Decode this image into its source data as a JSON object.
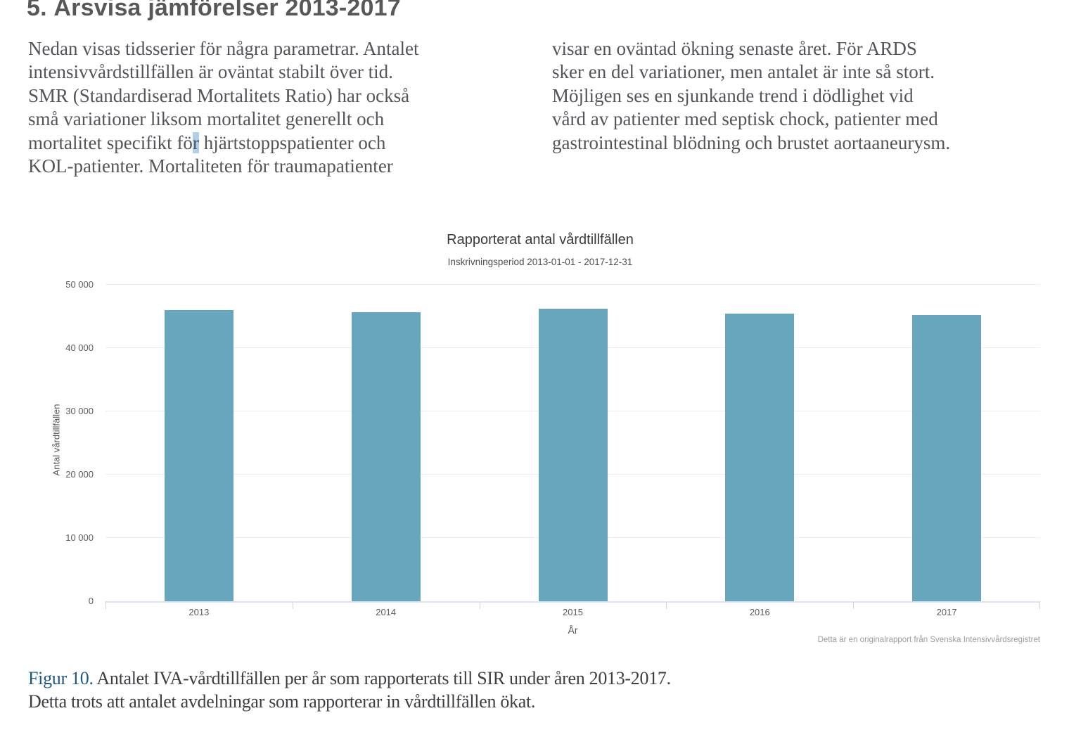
{
  "page": {
    "heading": "5. Årsvisa jämförelser 2013-2017"
  },
  "body": {
    "left_col": {
      "line1": "Nedan visas tidsserier för några parametrar. Antalet",
      "line2": "intensivvårdstillfällen är oväntat stabilt över tid.",
      "line3": "SMR (Standardiserad Mortalitets Ratio) har också",
      "line4": "små variationer liksom mortalitet generellt och",
      "line5_before": "mortalitet specifikt fö",
      "line5_highlight": "r",
      "line5_after": " hjärtstoppspatienter och",
      "line6": "KOL-patienter. Mortaliteten för traumapatienter"
    },
    "right_col": {
      "line1": "visar en oväntad ökning senaste året. För ARDS",
      "line2": "sker en del variationer, men antalet är inte så stort.",
      "line3": "Möjligen ses en sjunkande trend i dödlighet vid",
      "line4": "vård av patienter med septisk chock, patienter med",
      "line5": "gastrointestinal blödning och brustet aortaaneurysm."
    }
  },
  "chart": {
    "title": "Rapporterat antal vårdtillfällen",
    "subtitle": "Inskrivningsperiod 2013-01-01 - 2017-12-31",
    "y_axis_label": "Antal vårdtillfällen",
    "x_axis_label": "År",
    "source_note": "Detta är en originalrapport från Svenska Intensivvårdsregistret",
    "bar_color": "#67a6bc",
    "y_axis_ticks": [
      {
        "value": 0,
        "label": "0"
      },
      {
        "value": 10000,
        "label": "10 000"
      },
      {
        "value": 20000,
        "label": "20 000"
      },
      {
        "value": 30000,
        "label": "30 000"
      },
      {
        "value": 40000,
        "label": "40 000"
      },
      {
        "value": 50000,
        "label": "50 000"
      }
    ]
  },
  "chart_data": {
    "type": "bar",
    "categories": [
      "2013",
      "2014",
      "2015",
      "2016",
      "2017"
    ],
    "values": [
      46000,
      45650,
      46200,
      45450,
      45200
    ],
    "title": "Rapporterat antal vårdtillfällen",
    "subtitle": "Inskrivningsperiod 2013-01-01 - 2017-12-31",
    "xlabel": "År",
    "ylabel": "Antal vårdtillfällen",
    "ylim": [
      0,
      50000
    ],
    "grid": true,
    "legend": false,
    "source_note": "Detta är en originalrapport från Svenska Intensivvårdsregistret"
  },
  "caption": {
    "label": "Figur 10.",
    "line1_rest": " Antalet IVA-vårdtillfällen per år som rapporterats till SIR under åren 2013-2017.",
    "line2": "Detta trots att antalet avdelningar som rapporterar in vårdtillfällen ökat."
  }
}
